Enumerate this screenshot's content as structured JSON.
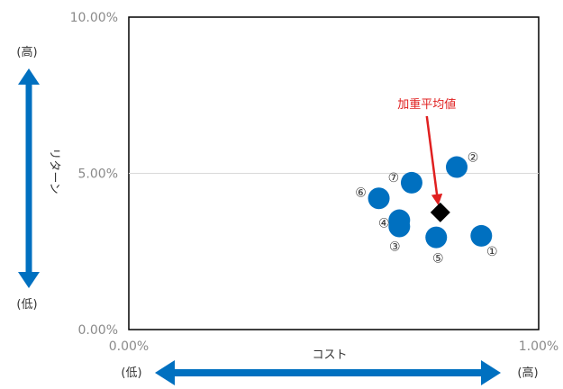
{
  "chart_data": {
    "type": "scatter",
    "title": "",
    "xlabel": "コスト",
    "ylabel": "リターン",
    "xlim": [
      0,
      1.0
    ],
    "ylim": [
      0,
      10.0
    ],
    "x_ticks": [
      "0.00%",
      "1.00%"
    ],
    "y_ticks": [
      "0.00%",
      "5.00%",
      "10.00%"
    ],
    "x_low_label": "(低)",
    "x_high_label": "(高)",
    "y_low_label": "(低)",
    "y_high_label": "(高)",
    "gridline_y": 5.0,
    "grid": "horizontal at 5.00% only",
    "series": [
      {
        "marker": "circle",
        "color": "#0070c0",
        "points": [
          {
            "label": "①",
            "x": 0.86,
            "y": 3.0
          },
          {
            "label": "②",
            "x": 0.8,
            "y": 5.2
          },
          {
            "label": "③",
            "x": 0.66,
            "y": 3.3
          },
          {
            "label": "④",
            "x": 0.66,
            "y": 3.5
          },
          {
            "label": "⑤",
            "x": 0.75,
            "y": 2.95
          },
          {
            "label": "⑥",
            "x": 0.61,
            "y": 4.2
          },
          {
            "label": "⑦",
            "x": 0.69,
            "y": 4.7
          }
        ]
      },
      {
        "marker": "diamond",
        "color": "#000000",
        "points": [
          {
            "label": "",
            "x": 0.76,
            "y": 3.75
          }
        ]
      }
    ],
    "annotation": {
      "text": "加重平均値",
      "color": "#e02020",
      "target_x": 0.76,
      "target_y": 3.75
    },
    "arrow_color": "#0070c0"
  }
}
